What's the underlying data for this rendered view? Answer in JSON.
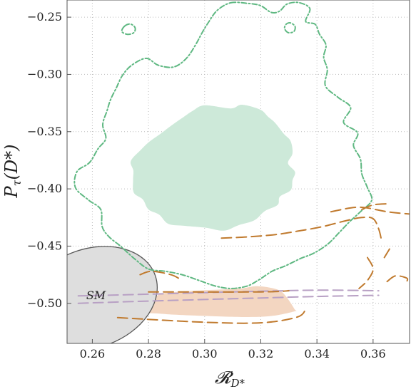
{
  "chart_data": {
    "type": "contour",
    "xlabel": "𝓡D*",
    "xlabel_main": "𝓡",
    "xlabel_sub": "D*",
    "ylabel": "Pτ(D*)",
    "ylabel_main": "P",
    "ylabel_sub": "τ",
    "ylabel_paren": "(D*)",
    "xlim": [
      0.251,
      0.373
    ],
    "ylim": [
      -0.535,
      -0.235
    ],
    "x_ticks": [
      0.26,
      0.28,
      0.3,
      0.32,
      0.34,
      0.36
    ],
    "x_tick_labels": [
      "0.26",
      "0.28",
      "0.30",
      "0.32",
      "0.34",
      "0.36"
    ],
    "y_ticks": [
      -0.25,
      -0.3,
      -0.35,
      -0.4,
      -0.45,
      -0.5
    ],
    "y_tick_labels": [
      "−0.25",
      "−0.30",
      "−0.35",
      "−0.40",
      "−0.45",
      "−0.50"
    ],
    "grid": true,
    "annotations": [
      {
        "text": "SM",
        "x": 0.2613,
        "y": -0.4965
      }
    ],
    "regions": [
      {
        "style": "filled",
        "color": "#cde9d9",
        "points": [
          [
            0.3,
            -0.327
          ],
          [
            0.3093,
            -0.3297
          ],
          [
            0.3133,
            -0.3265
          ],
          [
            0.3198,
            -0.3308
          ],
          [
            0.3226,
            -0.337
          ],
          [
            0.3251,
            -0.3423
          ],
          [
            0.3282,
            -0.3519
          ],
          [
            0.3306,
            -0.3582
          ],
          [
            0.3313,
            -0.369
          ],
          [
            0.3297,
            -0.3776
          ],
          [
            0.3322,
            -0.3852
          ],
          [
            0.3313,
            -0.3925
          ],
          [
            0.3307,
            -0.401
          ],
          [
            0.3268,
            -0.4068
          ],
          [
            0.326,
            -0.414
          ],
          [
            0.3214,
            -0.4195
          ],
          [
            0.3177,
            -0.4275
          ],
          [
            0.312,
            -0.4318
          ],
          [
            0.3069,
            -0.4365
          ],
          [
            0.3006,
            -0.434
          ],
          [
            0.293,
            -0.4323
          ],
          [
            0.2871,
            -0.4306
          ],
          [
            0.2838,
            -0.4225
          ],
          [
            0.28,
            -0.418
          ],
          [
            0.278,
            -0.4093
          ],
          [
            0.2748,
            -0.4034
          ],
          [
            0.2745,
            -0.3922
          ],
          [
            0.2746,
            -0.384
          ],
          [
            0.2737,
            -0.3757
          ],
          [
            0.2771,
            -0.3663
          ],
          [
            0.2802,
            -0.359
          ],
          [
            0.2843,
            -0.3518
          ],
          [
            0.2878,
            -0.3453
          ],
          [
            0.2925,
            -0.3372
          ],
          [
            0.2958,
            -0.3318
          ]
        ]
      },
      {
        "style": "filled",
        "color": "#f3d6c1",
        "points": [
          [
            0.278,
            -0.505
          ],
          [
            0.281,
            -0.499
          ],
          [
            0.284,
            -0.492
          ],
          [
            0.29,
            -0.49
          ],
          [
            0.296,
            -0.489
          ],
          [
            0.305,
            -0.488
          ],
          [
            0.313,
            -0.487
          ],
          [
            0.319,
            -0.485
          ],
          [
            0.326,
            -0.488
          ],
          [
            0.329,
            -0.494
          ],
          [
            0.332,
            -0.505
          ],
          [
            0.332,
            -0.507
          ],
          [
            0.324,
            -0.511
          ],
          [
            0.314,
            -0.512
          ],
          [
            0.3,
            -0.511
          ],
          [
            0.29,
            -0.51
          ],
          [
            0.284,
            -0.509
          ],
          [
            0.278,
            -0.508
          ]
        ]
      },
      {
        "style": "ellipse",
        "name": "SM",
        "color_fill": "#dedede",
        "color_stroke": "#595959",
        "center": [
          0.2596,
          -0.4955
        ],
        "semi_axes": [
          0.0055,
          0.043
        ],
        "rotation_deg": -20
      },
      {
        "style": "dot-dash",
        "color": "#5fb882",
        "closed": true,
        "points": [
          [
            0.3093,
            -0.2374
          ],
          [
            0.3151,
            -0.2379
          ],
          [
            0.3198,
            -0.2398
          ],
          [
            0.3238,
            -0.2459
          ],
          [
            0.3267,
            -0.2447
          ],
          [
            0.3294,
            -0.2385
          ],
          [
            0.3336,
            -0.2373
          ],
          [
            0.3375,
            -0.2425
          ],
          [
            0.336,
            -0.2537
          ],
          [
            0.3394,
            -0.2563
          ],
          [
            0.3409,
            -0.2648
          ],
          [
            0.3432,
            -0.2743
          ],
          [
            0.3424,
            -0.285
          ],
          [
            0.3437,
            -0.296
          ],
          [
            0.343,
            -0.31
          ],
          [
            0.3475,
            -0.32
          ],
          [
            0.352,
            -0.329
          ],
          [
            0.3495,
            -0.342
          ],
          [
            0.3545,
            -0.351
          ],
          [
            0.353,
            -0.362
          ],
          [
            0.3555,
            -0.374
          ],
          [
            0.356,
            -0.387
          ],
          [
            0.358,
            -0.399
          ],
          [
            0.3595,
            -0.41
          ],
          [
            0.3555,
            -0.42
          ],
          [
            0.3515,
            -0.429
          ],
          [
            0.348,
            -0.438
          ],
          [
            0.344,
            -0.448
          ],
          [
            0.339,
            -0.456
          ],
          [
            0.334,
            -0.461
          ],
          [
            0.329,
            -0.467
          ],
          [
            0.324,
            -0.472
          ],
          [
            0.319,
            -0.48
          ],
          [
            0.315,
            -0.485
          ],
          [
            0.3095,
            -0.487
          ],
          [
            0.304,
            -0.485
          ],
          [
            0.298,
            -0.48
          ],
          [
            0.292,
            -0.475
          ],
          [
            0.286,
            -0.472
          ],
          [
            0.28,
            -0.47
          ],
          [
            0.275,
            -0.461
          ],
          [
            0.27,
            -0.45
          ],
          [
            0.266,
            -0.442
          ],
          [
            0.2635,
            -0.433
          ],
          [
            0.263,
            -0.418
          ],
          [
            0.2588,
            -0.41
          ],
          [
            0.254,
            -0.399
          ],
          [
            0.2545,
            -0.385
          ],
          [
            0.259,
            -0.377
          ],
          [
            0.262,
            -0.365
          ],
          [
            0.2648,
            -0.356
          ],
          [
            0.2637,
            -0.344
          ],
          [
            0.2652,
            -0.332
          ],
          [
            0.2665,
            -0.322
          ],
          [
            0.2685,
            -0.312
          ],
          [
            0.2707,
            -0.301
          ],
          [
            0.274,
            -0.292
          ],
          [
            0.2792,
            -0.286
          ],
          [
            0.2835,
            -0.292
          ],
          [
            0.289,
            -0.2935
          ],
          [
            0.2935,
            -0.286
          ],
          [
            0.2968,
            -0.274
          ],
          [
            0.299,
            -0.264
          ],
          [
            0.3015,
            -0.254
          ],
          [
            0.3045,
            -0.244
          ]
        ]
      },
      {
        "style": "dot-dash",
        "color": "#5fb882",
        "closed": true,
        "points": [
          [
            0.2715,
            -0.2578
          ],
          [
            0.2735,
            -0.256
          ],
          [
            0.2752,
            -0.259
          ],
          [
            0.2748,
            -0.2635
          ],
          [
            0.2725,
            -0.265
          ],
          [
            0.2705,
            -0.2625
          ]
        ]
      },
      {
        "style": "dot-dash",
        "color": "#5fb882",
        "closed": true,
        "points": [
          [
            0.329,
            -0.2562
          ],
          [
            0.3305,
            -0.255
          ],
          [
            0.3322,
            -0.258
          ],
          [
            0.3318,
            -0.2625
          ],
          [
            0.3298,
            -0.2635
          ],
          [
            0.3285,
            -0.26
          ]
        ]
      },
      {
        "style": "dashed",
        "color": "#b8a0c4",
        "closed": false,
        "points": [
          [
            0.255,
            -0.5
          ],
          [
            0.28,
            -0.498
          ],
          [
            0.31,
            -0.496
          ],
          [
            0.34,
            -0.494
          ],
          [
            0.362,
            -0.493
          ]
        ]
      },
      {
        "style": "dashed",
        "color": "#b8a0c4",
        "closed": false,
        "points": [
          [
            0.255,
            -0.4935
          ],
          [
            0.28,
            -0.492
          ],
          [
            0.31,
            -0.49
          ],
          [
            0.34,
            -0.4885
          ],
          [
            0.362,
            -0.489
          ]
        ]
      },
      {
        "style": "dashed",
        "color": "#c07a2e",
        "closed": false,
        "points": [
          [
            0.28,
            -0.49
          ],
          [
            0.32,
            -0.49
          ],
          [
            0.33,
            -0.489
          ]
        ]
      },
      {
        "style": "dashed",
        "color": "#c07a2e",
        "closed": false,
        "points": [
          [
            0.269,
            -0.5125
          ],
          [
            0.3,
            -0.5165
          ],
          [
            0.32,
            -0.517
          ],
          [
            0.333,
            -0.512
          ],
          [
            0.336,
            -0.505
          ]
        ]
      },
      {
        "style": "dashed",
        "color": "#c07a2e",
        "closed": false,
        "points": [
          [
            0.277,
            -0.475
          ],
          [
            0.281,
            -0.472
          ],
          [
            0.288,
            -0.475
          ],
          [
            0.292,
            -0.48
          ]
        ]
      },
      {
        "style": "dashed",
        "color": "#c07a2e",
        "closed": false,
        "points": [
          [
            0.306,
            -0.443
          ],
          [
            0.315,
            -0.442
          ],
          [
            0.325,
            -0.44
          ],
          [
            0.333,
            -0.437
          ],
          [
            0.342,
            -0.433
          ],
          [
            0.35,
            -0.428
          ],
          [
            0.356,
            -0.425
          ],
          [
            0.36,
            -0.426
          ],
          [
            0.362,
            -0.435
          ],
          [
            0.363,
            -0.445
          ]
        ]
      },
      {
        "style": "dashed",
        "color": "#c07a2e",
        "closed": false,
        "points": [
          [
            0.345,
            -0.42
          ],
          [
            0.355,
            -0.416
          ],
          [
            0.365,
            -0.42
          ],
          [
            0.373,
            -0.422
          ]
        ]
      },
      {
        "style": "dashed",
        "color": "#c07a2e",
        "closed": false,
        "points": [
          [
            0.356,
            -0.418
          ],
          [
            0.36,
            -0.414
          ],
          [
            0.365,
            -0.413
          ]
        ]
      },
      {
        "style": "dashed",
        "color": "#c07a2e",
        "closed": false,
        "points": [
          [
            0.358,
            -0.46
          ],
          [
            0.36,
            -0.47
          ],
          [
            0.358,
            -0.48
          ],
          [
            0.355,
            -0.487
          ]
        ]
      },
      {
        "style": "dashed",
        "color": "#c07a2e",
        "closed": false,
        "points": [
          [
            0.365,
            -0.481
          ],
          [
            0.368,
            -0.476
          ],
          [
            0.372,
            -0.478
          ],
          [
            0.372,
            -0.481
          ]
        ]
      },
      {
        "style": "dashed",
        "color": "#c07a2e",
        "closed": false,
        "points": [
          [
            0.364,
            -0.46
          ],
          [
            0.366,
            -0.452
          ]
        ]
      }
    ]
  }
}
